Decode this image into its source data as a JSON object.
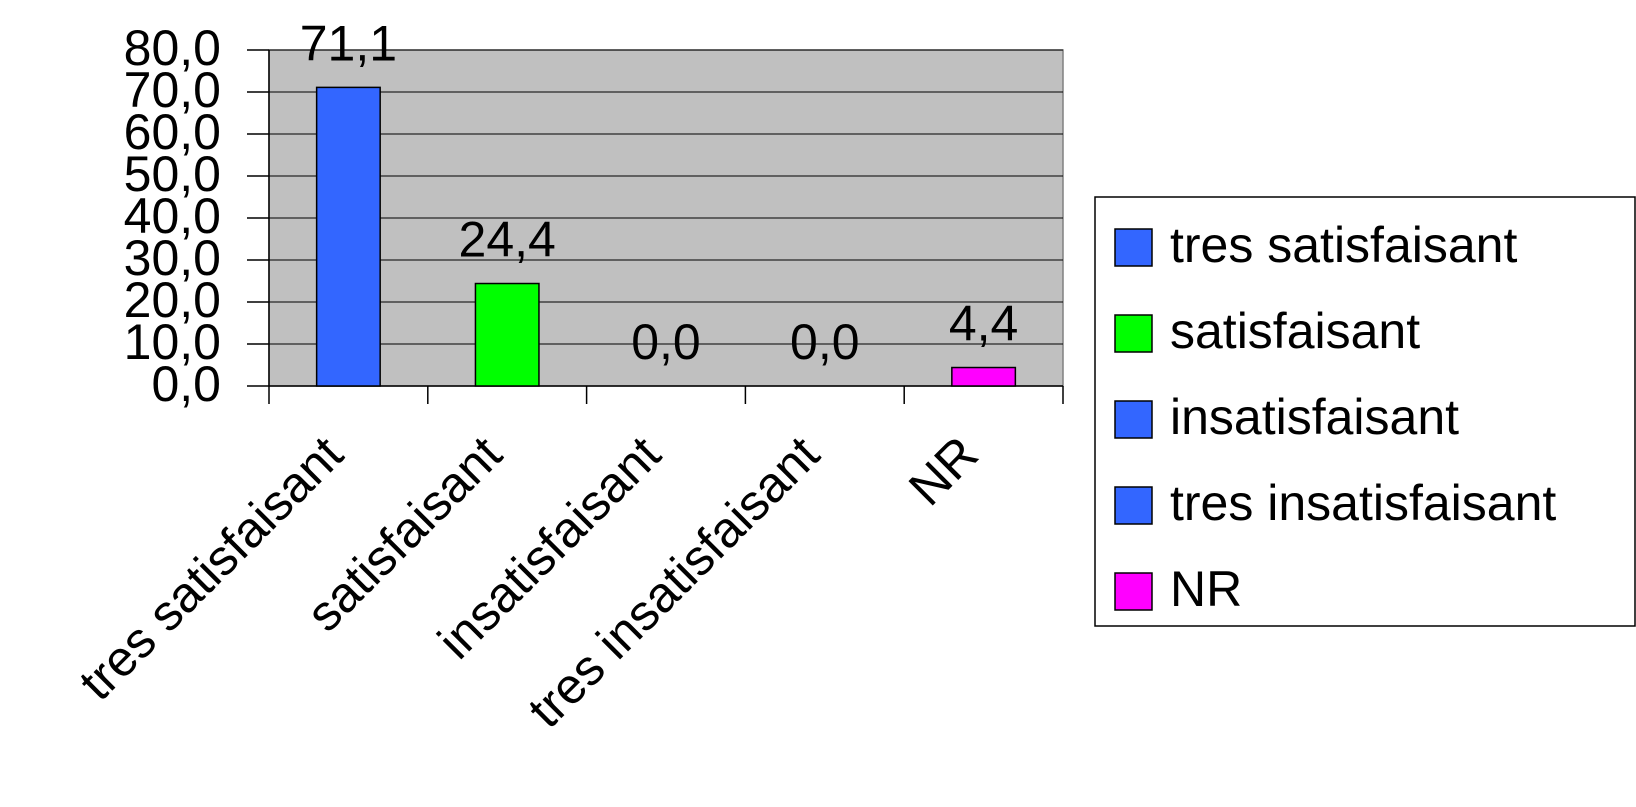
{
  "chart_data": {
    "type": "bar",
    "categories": [
      "tres satisfaisant",
      "satisfaisant",
      "insatisfaisant",
      "tres insatisfaisant",
      "NR"
    ],
    "values": [
      71.1,
      24.4,
      0,
      0,
      4.4
    ],
    "value_labels": [
      "71,1",
      "24,4",
      "0,0",
      "0,0",
      "4,4"
    ],
    "colors": [
      "#3366ff",
      "#00ff00",
      "#3366ff",
      "#3366ff",
      "#ff00ff"
    ],
    "ylim": [
      0,
      80
    ],
    "yticks": [
      {
        "value": 0,
        "label": "0,0"
      },
      {
        "value": 10,
        "label": "10,0"
      },
      {
        "value": 20,
        "label": "20,0"
      },
      {
        "value": 30,
        "label": "30,0"
      },
      {
        "value": 40,
        "label": "40,0"
      },
      {
        "value": 50,
        "label": "50,0"
      },
      {
        "value": 60,
        "label": "60,0"
      },
      {
        "value": 70,
        "label": "70,0"
      },
      {
        "value": 80,
        "label": "80,0"
      }
    ],
    "grid": true,
    "legend": "right"
  }
}
